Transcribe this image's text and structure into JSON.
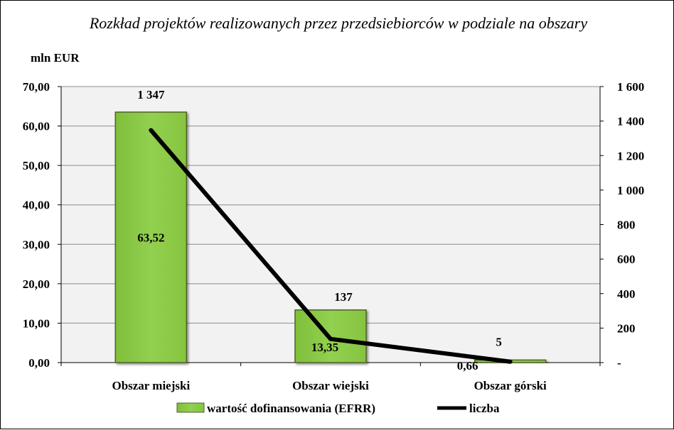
{
  "chart_data": {
    "type": "bar",
    "title": "Rozkład projektów realizowanych przez przedsiebiorców w podziale na obszary",
    "ylabel": "mln EUR",
    "categories": [
      "Obszar miejski",
      "Obszar wiejski",
      "Obszar górski"
    ],
    "series": [
      {
        "name": "wartość dofinansowania (EFRR)",
        "type": "bar",
        "axis": "left",
        "values": [
          63.52,
          13.35,
          0.66
        ],
        "labels": [
          "63,52",
          "13,35",
          "0,66"
        ],
        "color": "#92D050"
      },
      {
        "name": "liczba",
        "type": "line",
        "axis": "right",
        "values": [
          1347,
          137,
          5
        ],
        "labels": [
          "1 347",
          "137",
          "5"
        ],
        "color": "#000000"
      }
    ],
    "ylim_left": [
      0,
      70
    ],
    "ylim_right": [
      0,
      1600
    ],
    "left_ticks": [
      "0,00",
      "10,00",
      "20,00",
      "30,00",
      "40,00",
      "50,00",
      "60,00",
      "70,00"
    ],
    "right_ticks": [
      "-",
      "200",
      "400",
      "600",
      "800",
      "1 000",
      "1 200",
      "1 400",
      "1 600"
    ],
    "grid": true,
    "legend_position": "bottom"
  }
}
